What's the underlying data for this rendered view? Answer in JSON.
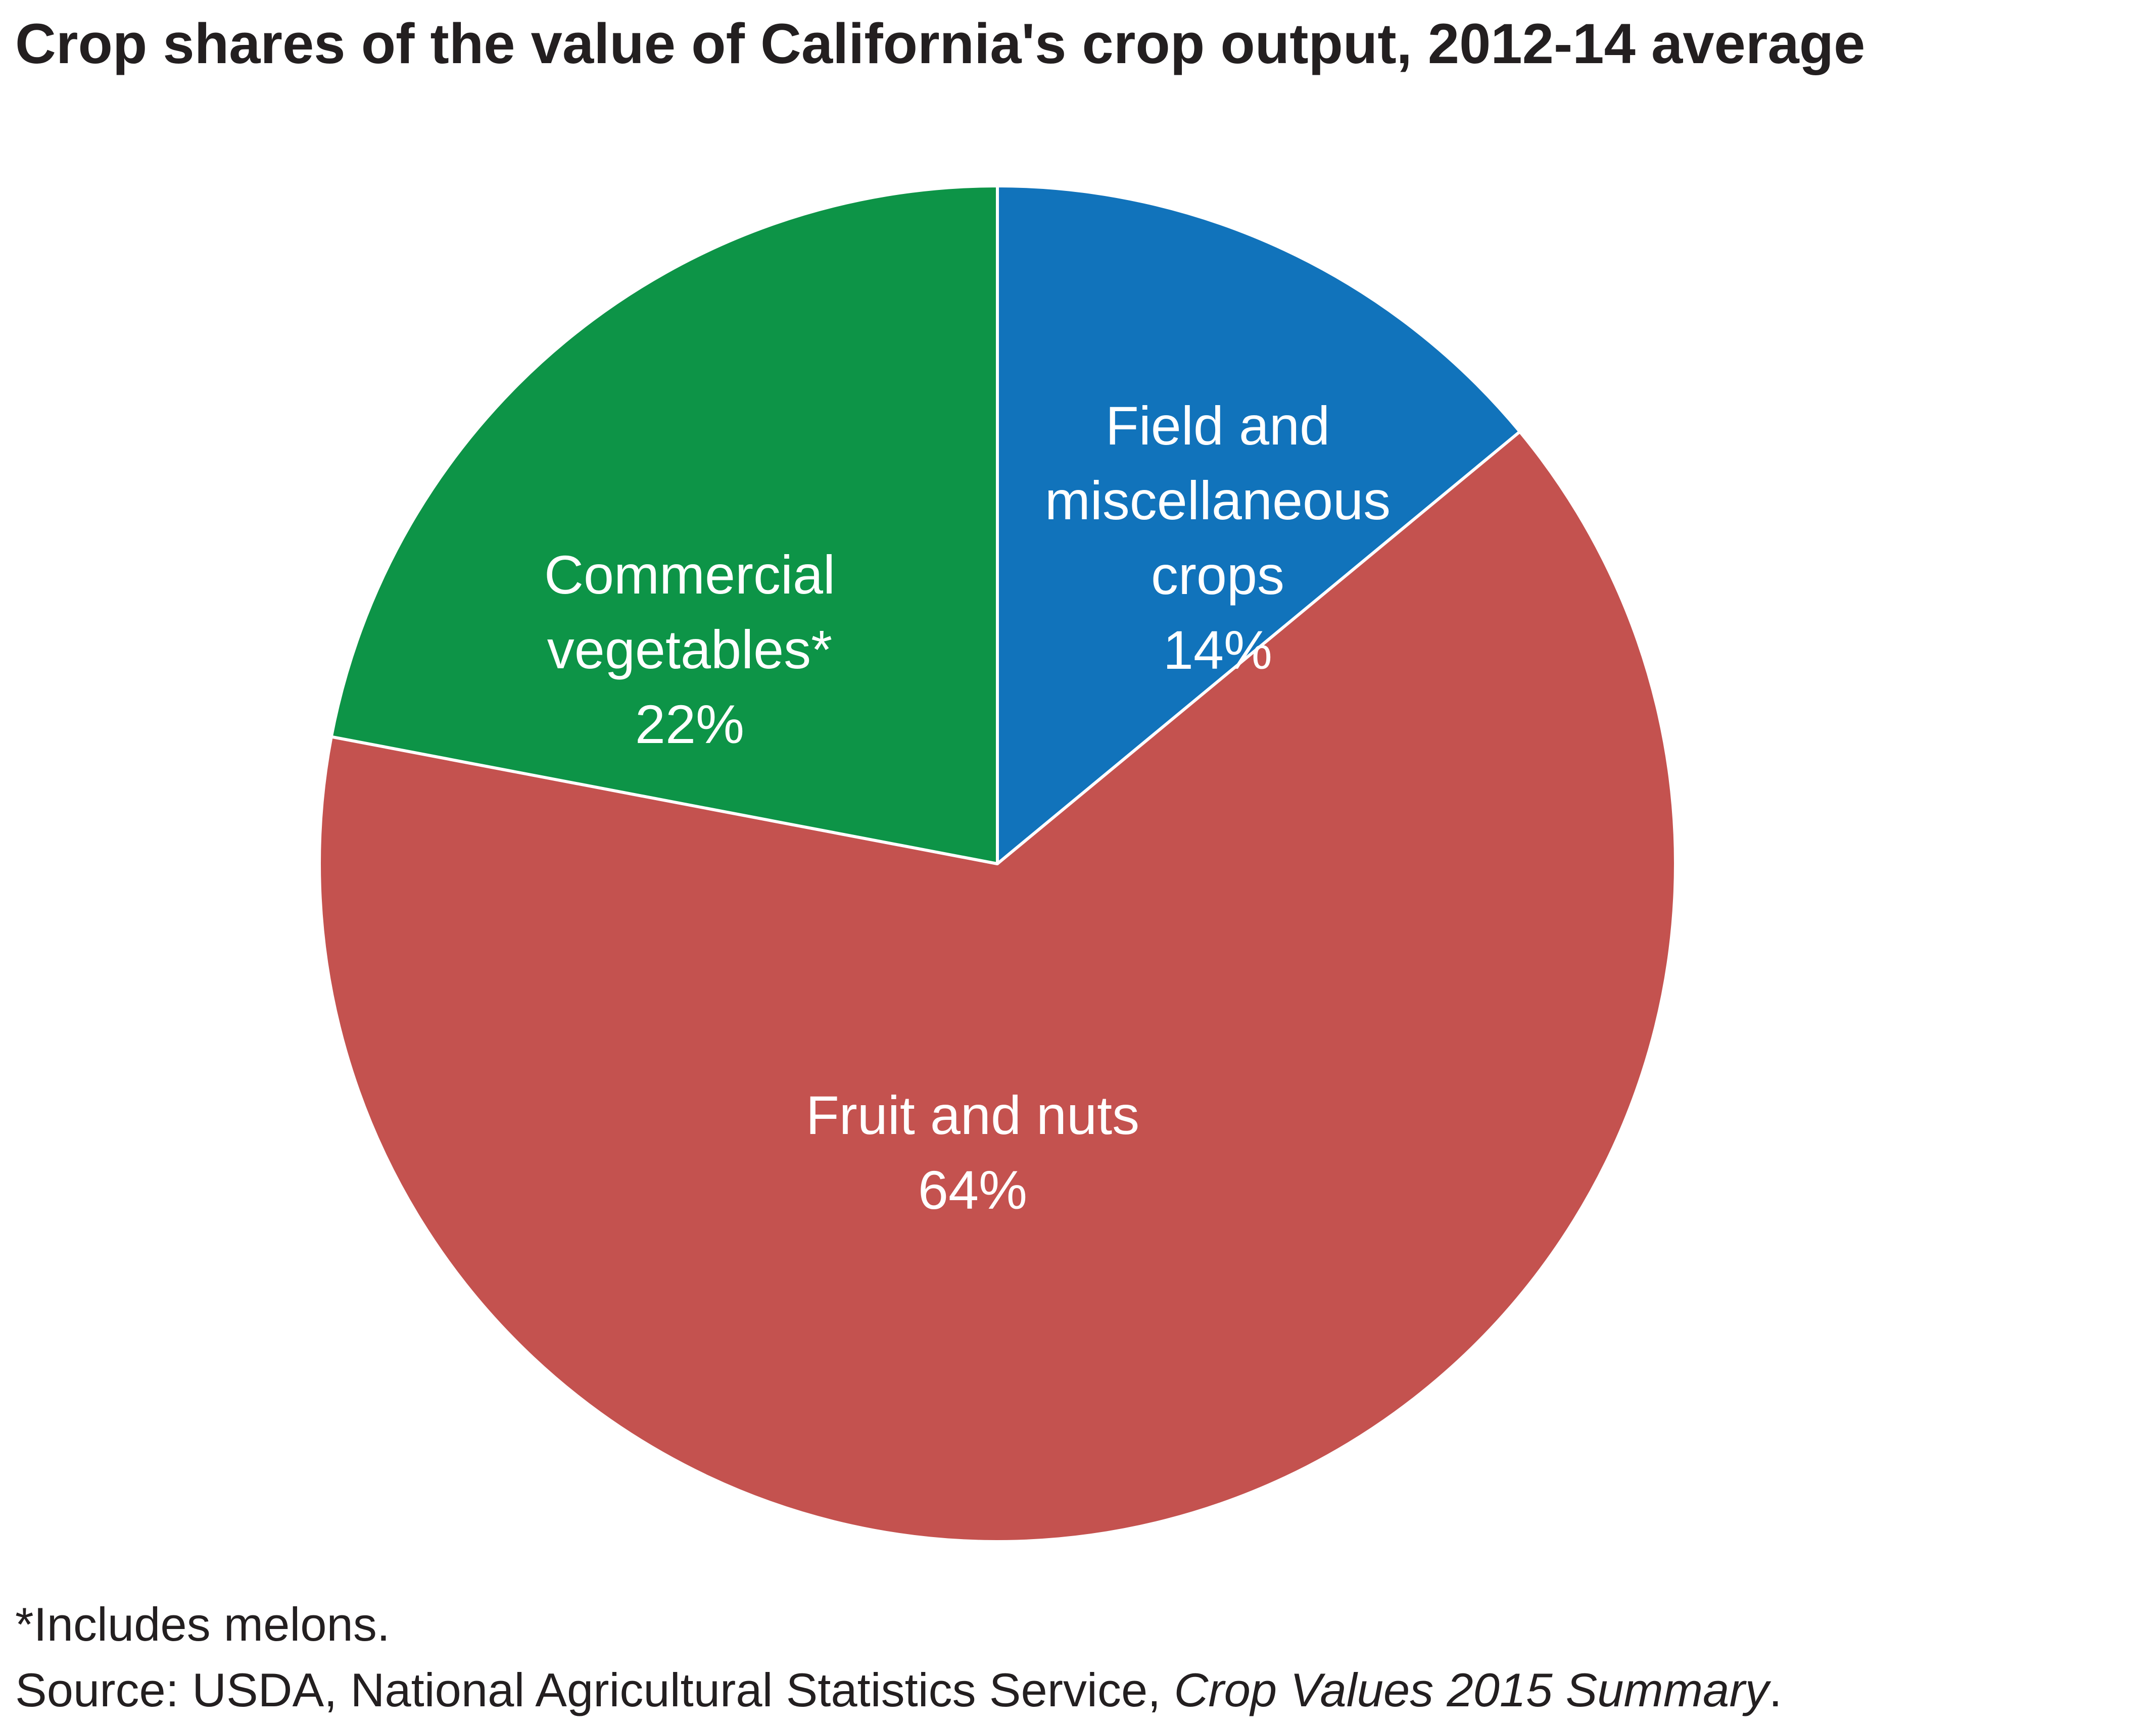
{
  "chart_data": {
    "type": "pie",
    "title": "Crop shares of the value of California's crop output, 2012-14 average",
    "slices": [
      {
        "label_lines": [
          "Field and",
          "miscellaneous",
          "crops"
        ],
        "value": 14,
        "value_label": "14%",
        "color": "#1173bb"
      },
      {
        "label_lines": [
          "Fruit and nuts"
        ],
        "value": 64,
        "value_label": "64%",
        "color": "#c4524f"
      },
      {
        "label_lines": [
          "Commercial",
          "vegetables*"
        ],
        "value": 22,
        "value_label": "22%",
        "color": "#0d9447"
      }
    ]
  },
  "footnote": "*Includes melons.",
  "source": {
    "prefix": "Source: USDA, National Agricultural Statistics Service, ",
    "publication": "Crop Values 2015 Summary",
    "suffix": "."
  }
}
